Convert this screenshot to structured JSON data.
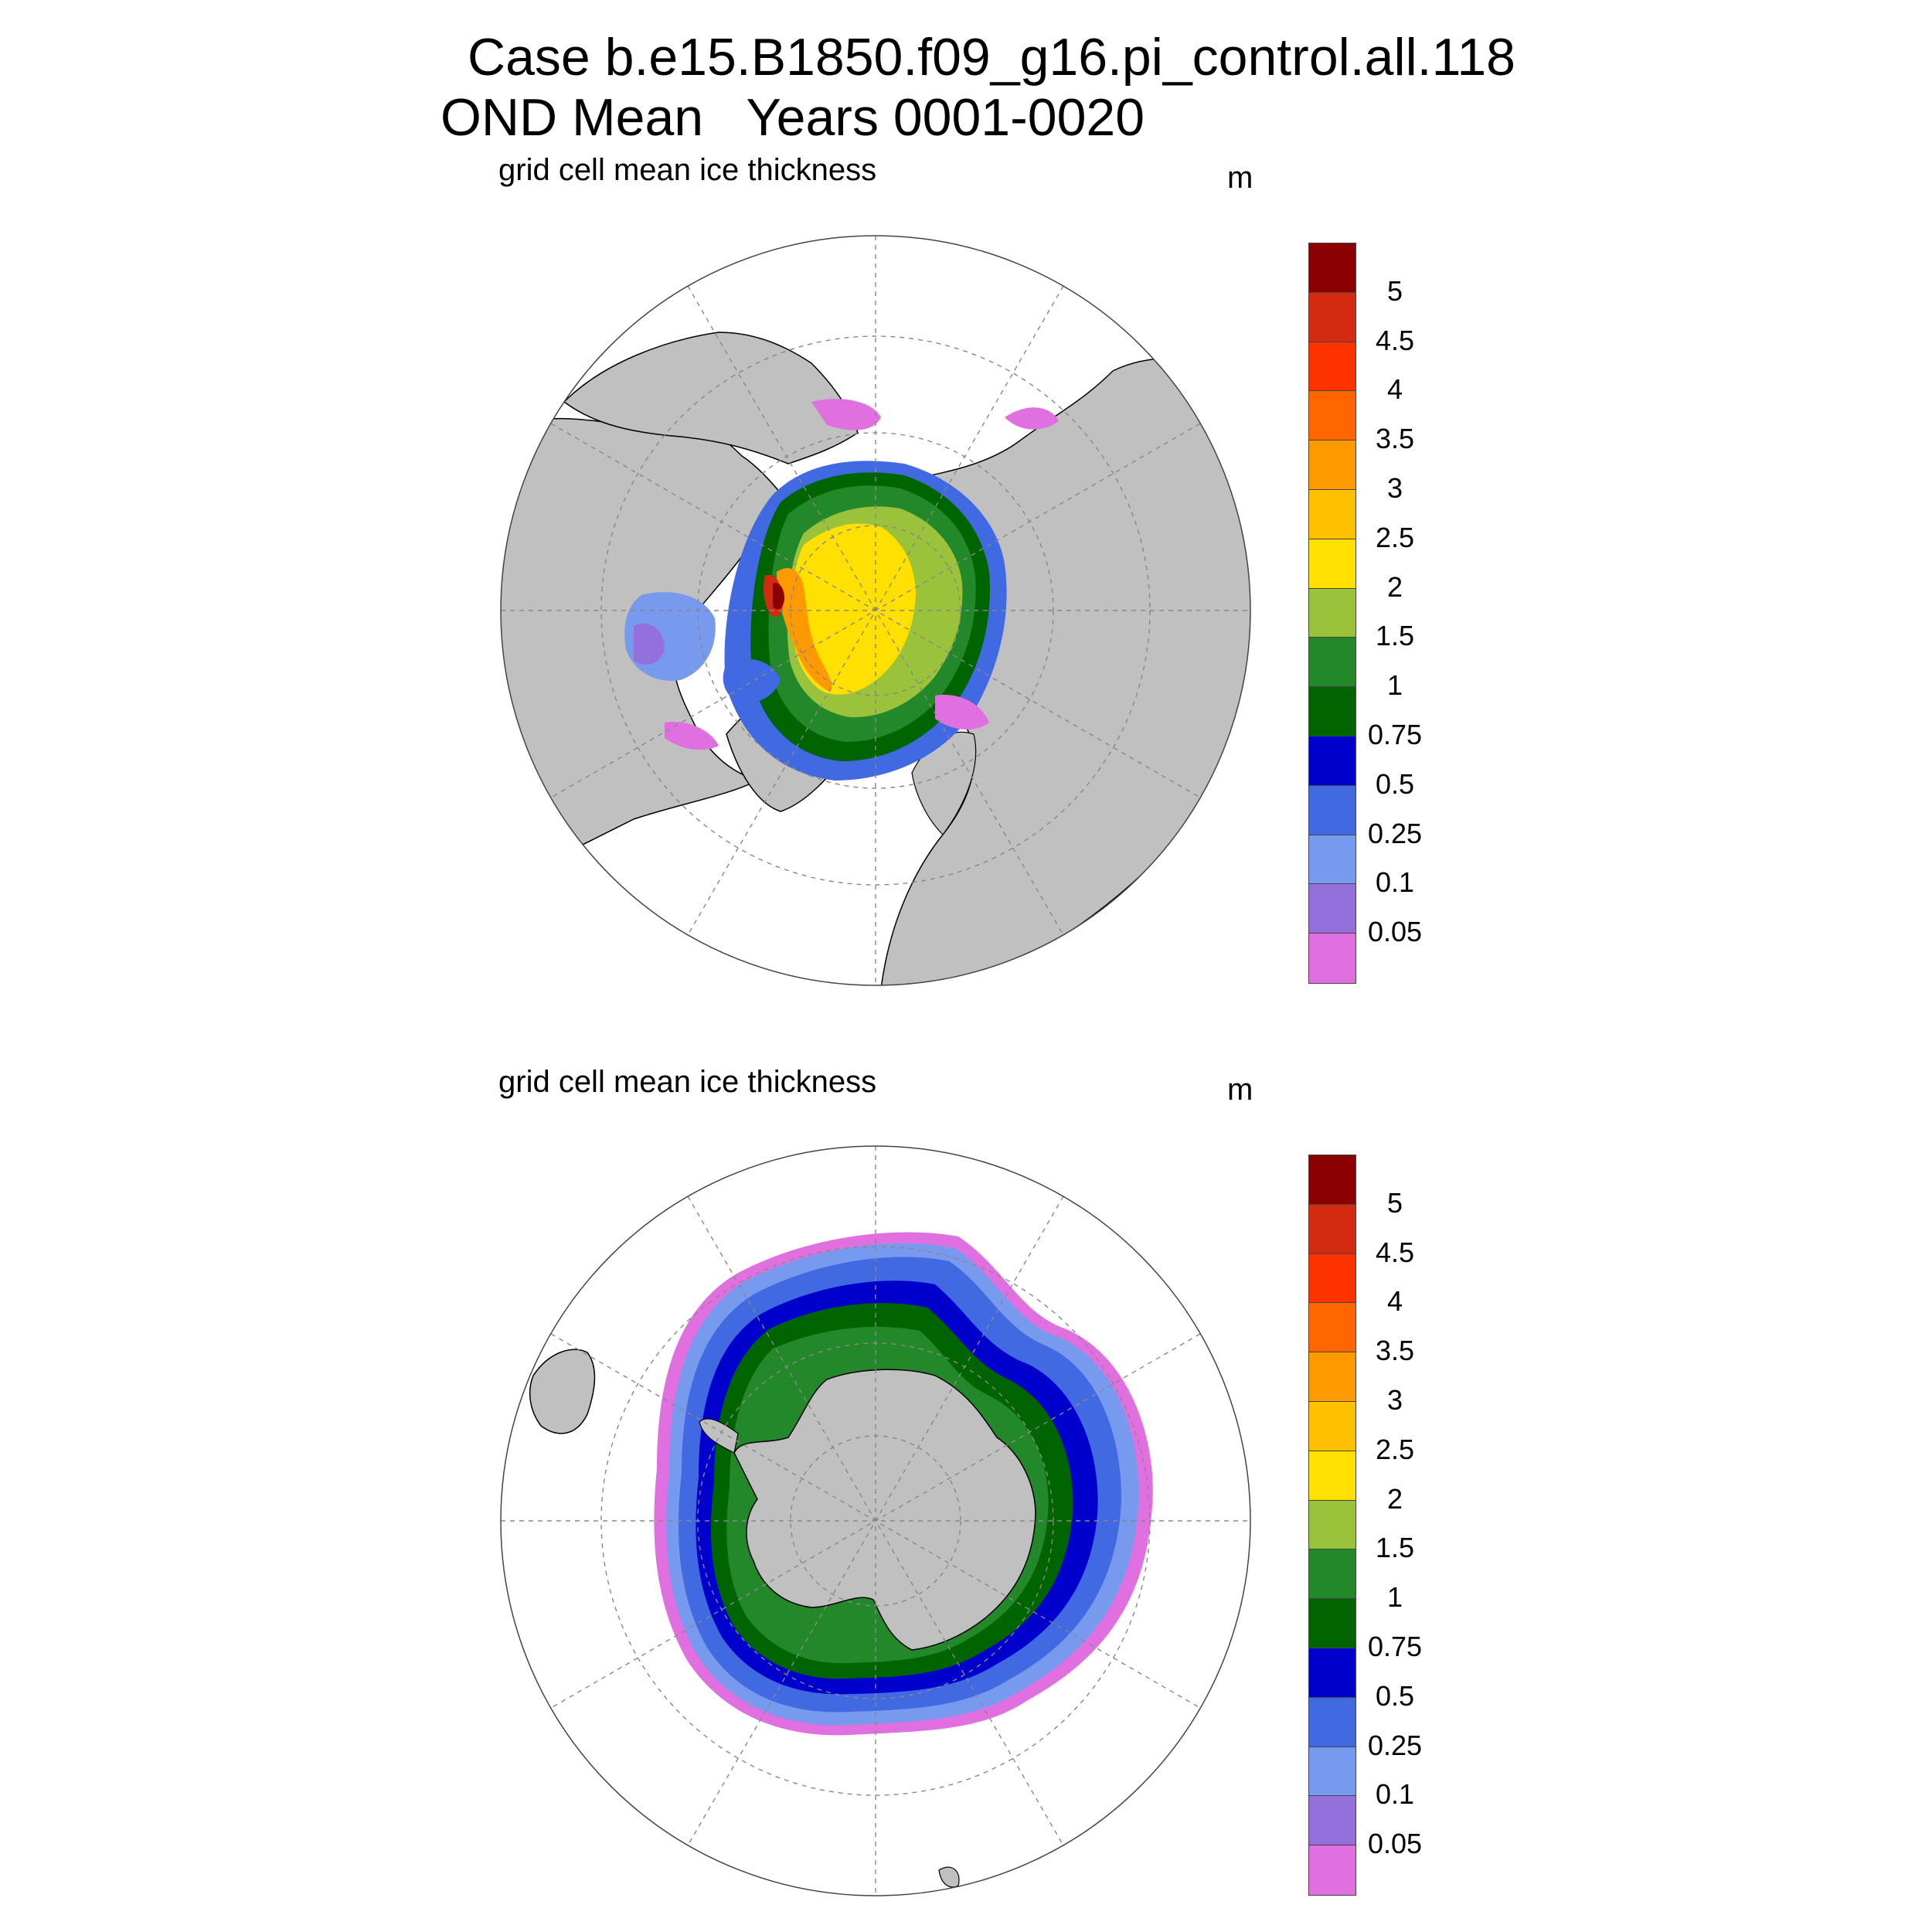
{
  "title": {
    "line1": "Case b.e15.B1850.f09_g16.pi_control.all.118",
    "line2": "OND Mean   Years 0001-0020"
  },
  "panels": [
    {
      "id": "north",
      "subtitle": "grid cell mean ice thickness",
      "units": "m"
    },
    {
      "id": "south",
      "subtitle": "grid cell mean ice thickness",
      "units": "m"
    }
  ],
  "colorbar": {
    "levels": [
      "5",
      "4.5",
      "4",
      "3.5",
      "3",
      "2.5",
      "2",
      "1.5",
      "1",
      "0.75",
      "0.5",
      "0.25",
      "0.1",
      "0.05"
    ],
    "colors": [
      "#8b0000",
      "#d42a10",
      "#ff3300",
      "#ff6600",
      "#ff9900",
      "#ffc000",
      "#ffe000",
      "#9ac23a",
      "#23882a",
      "#006400",
      "#0000cd",
      "#4169e1",
      "#7799ee",
      "#9370db",
      "#e070e0"
    ]
  },
  "colors": {
    "land": "#c0c0c0",
    "ocean": "#ffffff",
    "grid": "#888888"
  }
}
